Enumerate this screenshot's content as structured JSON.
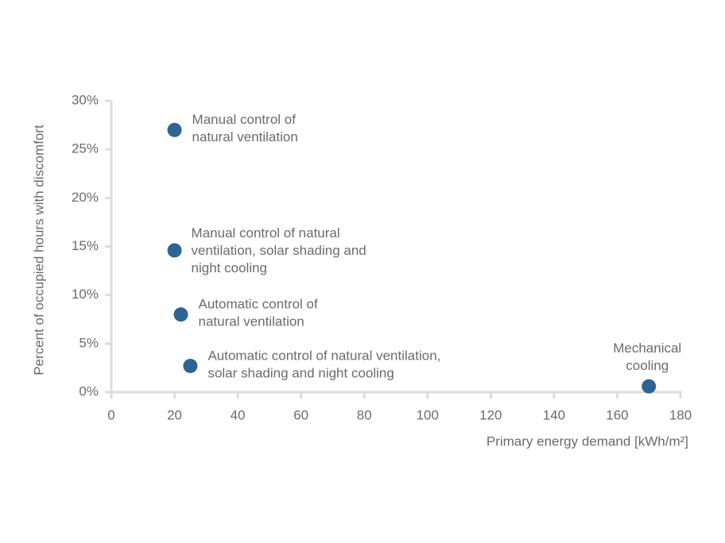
{
  "chart_data": {
    "type": "scatter",
    "x_label": "Primary energy demand [kWh/m²]",
    "y_label": "Percent of occupied hours with discomfort",
    "x": [
      20,
      20,
      22,
      25,
      170
    ],
    "values": [
      27,
      14.6,
      8,
      2.7,
      0.6
    ],
    "point_labels": [
      [
        "Manual control of",
        "natural ventilation"
      ],
      [
        "Manual control of natural",
        "ventilation, solar shading and",
        "night cooling"
      ],
      [
        "Automatic control of",
        "natural ventilation"
      ],
      [
        "Automatic control of natural ventilation,",
        "solar shading and night cooling"
      ],
      [
        "Mechanical",
        "cooling"
      ]
    ],
    "color": "#2d6492",
    "xlim": [
      0,
      180
    ],
    "xticks": [
      0,
      20,
      40,
      60,
      80,
      100,
      120,
      140,
      160,
      180
    ],
    "ylim": [
      0,
      30
    ],
    "yticks": [
      {
        "value": 0,
        "label": "0%"
      },
      {
        "value": 5,
        "label": "5%"
      },
      {
        "value": 10,
        "label": "10%"
      },
      {
        "value": 15,
        "label": "15%"
      },
      {
        "value": 20,
        "label": "20%"
      },
      {
        "value": 25,
        "label": "25%"
      },
      {
        "value": 30,
        "label": "30%"
      }
    ]
  }
}
